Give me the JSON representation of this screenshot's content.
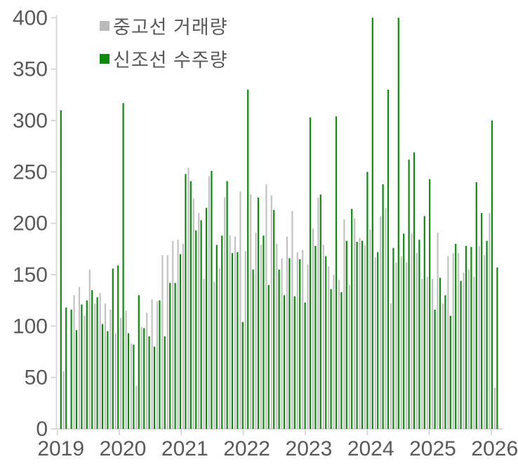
{
  "legend": {
    "items": [
      {
        "name": "used-ship-transactions",
        "label": "중고선 거래량",
        "color": "#b9b9b9"
      },
      {
        "name": "newbuild-orders",
        "label": "신조선 수주량",
        "color": "#0f8a0f"
      }
    ]
  },
  "colors": {
    "used_bar": "#c2c2c2",
    "newbuild_bar": "#0f8a0f",
    "axis_line": "#d9d9d9",
    "tick_mark": "#d9d9d9",
    "label_text": "#595959",
    "background": "#ffffff"
  },
  "chart_data": {
    "type": "bar",
    "title": "",
    "xlabel": "",
    "ylabel": "",
    "grid": false,
    "legend_position": "top-left-inside",
    "x_tick_labels": [
      "2019",
      "2020",
      "2021",
      "2022",
      "2023",
      "2024",
      "2025",
      "2026"
    ],
    "y_tick_labels": [
      "0",
      "50",
      "100",
      "150",
      "200",
      "250",
      "300",
      "350",
      "400"
    ],
    "y_ticks": [
      0,
      50,
      100,
      150,
      200,
      250,
      300,
      350,
      400
    ],
    "ylim": [
      0,
      400
    ],
    "x_start": "2019-01",
    "x_end": "2026-01",
    "x_frequency": "monthly",
    "series": [
      {
        "name": "중고선 거래량",
        "color": "#c2c2c2",
        "values": [
          0,
          56,
          0,
          130,
          138,
          110,
          155,
          122,
          132,
          122,
          116,
          93,
          108,
          115,
          83,
          42,
          99,
          113,
          126,
          124,
          169,
          169,
          183,
          184,
          180,
          254,
          224,
          210,
          146,
          246,
          143,
          156,
          225,
          188,
          187,
          231,
          173,
          228,
          191,
          179,
          238,
          227,
          180,
          166,
          187,
          212,
          172,
          174,
          160,
          195,
          225,
          179,
          158,
          150,
          145,
          204,
          140,
          205,
          186,
          179,
          194,
          167,
          207,
          215,
          122,
          162,
          168,
          162,
          190,
          171,
          146,
          148,
          146,
          191,
          122,
          168,
          171,
          171,
          152,
          155,
          148,
          178,
          169,
          210,
          40
        ]
      },
      {
        "name": "신조선 수주량",
        "color": "#0f8a0f",
        "values": [
          310,
          118,
          116,
          96,
          121,
          125,
          135,
          128,
          102,
          95,
          156,
          159,
          317,
          93,
          82,
          130,
          98,
          90,
          80,
          125,
          90,
          142,
          142,
          170,
          248,
          241,
          193,
          203,
          215,
          251,
          179,
          188,
          241,
          171,
          172,
          104,
          330,
          155,
          225,
          188,
          140,
          213,
          155,
          130,
          166,
          129,
          165,
          123,
          303,
          178,
          228,
          168,
          136,
          304,
          133,
          183,
          214,
          182,
          183,
          250,
          400,
          172,
          238,
          330,
          176,
          400,
          190,
          262,
          269,
          184,
          207,
          243,
          116,
          147,
          130,
          110,
          180,
          144,
          178,
          177,
          240,
          210,
          183,
          300,
          157
        ]
      }
    ]
  }
}
